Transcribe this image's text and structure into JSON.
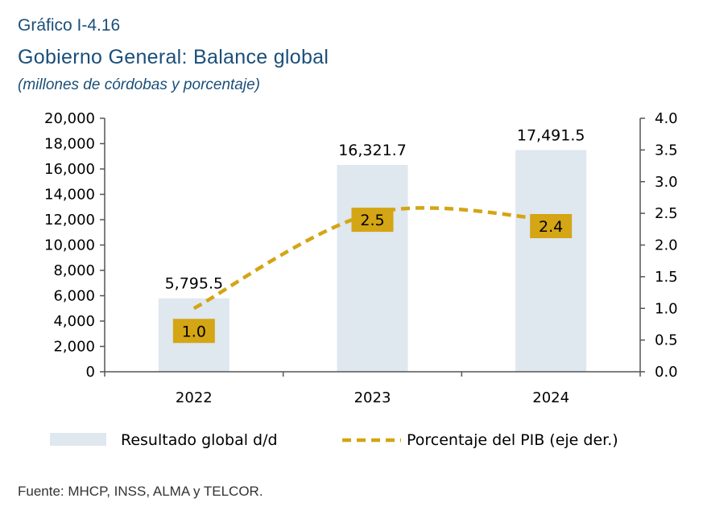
{
  "figure": {
    "number": "Gráfico I-4.16",
    "title": "Gobierno General: Balance global",
    "subtitle": "(millones de córdobas y porcentaje)",
    "source": "Fuente: MHCP, INSS, ALMA y TELCOR."
  },
  "chart_data": {
    "type": "bar",
    "categories": [
      "2022",
      "2023",
      "2024"
    ],
    "series": [
      {
        "name": "Resultado global d/d",
        "type": "bar",
        "axis": "left",
        "values": [
          5795.5,
          16321.7,
          17491.5
        ],
        "labels": [
          "5,795.5",
          "16,321.7",
          "17,491.5"
        ],
        "color": "#dfe7ef"
      },
      {
        "name": "Porcentaje del PIB (eje der.)",
        "type": "line",
        "style": "dashed-smooth",
        "axis": "right",
        "values": [
          1.0,
          2.5,
          2.4
        ],
        "labels": [
          "1.0",
          "2.5",
          "2.4"
        ],
        "color": "#d4a514"
      }
    ],
    "y_left": {
      "range": [
        0,
        20000
      ],
      "ticks": [
        "0",
        "2,000",
        "4,000",
        "6,000",
        "8,000",
        "10,000",
        "12,000",
        "14,000",
        "16,000",
        "18,000",
        "20,000"
      ]
    },
    "y_right": {
      "range": [
        0,
        4.0
      ],
      "ticks": [
        "0.0",
        "0.5",
        "1.0",
        "1.5",
        "2.0",
        "2.5",
        "3.0",
        "3.5",
        "4.0"
      ]
    },
    "grid": false,
    "legend_position": "bottom"
  }
}
